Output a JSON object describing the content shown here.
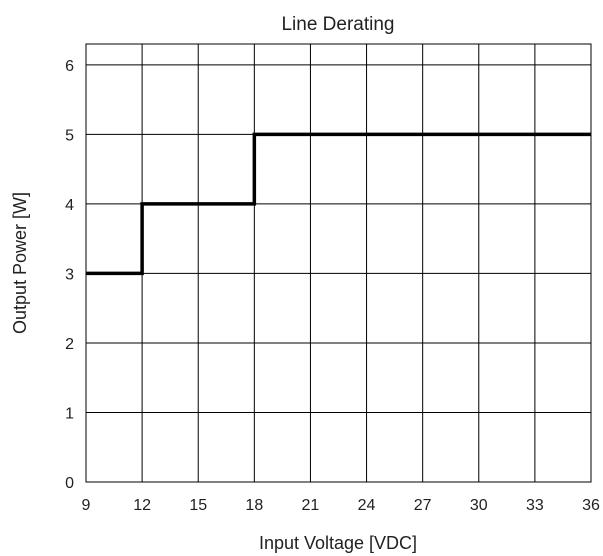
{
  "chart_data": {
    "type": "line",
    "title": "Line Derating",
    "xlabel": "Input Voltage [VDC]",
    "ylabel": "Output Power [W]",
    "xlim": [
      9,
      36
    ],
    "ylim": [
      0,
      6.3
    ],
    "xticks": [
      9,
      12,
      15,
      18,
      21,
      24,
      27,
      30,
      33,
      36
    ],
    "yticks": [
      0,
      1,
      2,
      3,
      4,
      5,
      6
    ],
    "grid": true,
    "step": true,
    "series": [
      {
        "x": [
          9,
          12,
          12,
          18,
          18,
          36
        ],
        "y": [
          3,
          3,
          4,
          4,
          5,
          5
        ]
      }
    ],
    "colors": {
      "line": "#000000",
      "grid": "#000000"
    }
  }
}
